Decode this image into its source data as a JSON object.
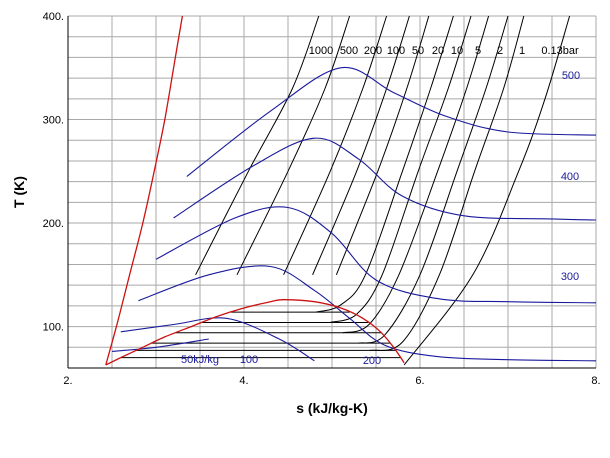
{
  "chart_data": {
    "type": "line",
    "xlabel": "s (kJ/kg-K)",
    "ylabel": "T (K)",
    "xlim": [
      2,
      8
    ],
    "ylim": [
      60,
      400
    ],
    "x_ticks": [
      2,
      4,
      6,
      8
    ],
    "x_tick_labels": [
      "2.",
      "4.",
      "6.",
      "8."
    ],
    "y_ticks": [
      100,
      200,
      300,
      400
    ],
    "y_tick_labels": [
      "100.",
      "200.",
      "300.",
      "400."
    ],
    "grid": true,
    "pressure_label_row": [
      "1000",
      "500",
      "200",
      "100",
      "50",
      "20",
      "10",
      "5",
      "2",
      "1",
      "0.13bar"
    ],
    "enthalpy_labels": [
      "50kJ/kg",
      "100",
      "200",
      "300",
      "400",
      "500"
    ],
    "colors": {
      "isobar": "#000000",
      "isenthalp": "#1a1a9c",
      "saturation": "#cc1111",
      "grid": "#a8a8a8"
    },
    "saturation_dome": {
      "liquid": [
        [
          2.43,
          63
        ],
        [
          2.6,
          70
        ],
        [
          2.85,
          80
        ],
        [
          3.1,
          90
        ],
        [
          3.4,
          100
        ],
        [
          3.7,
          110
        ],
        [
          4.0,
          118
        ],
        [
          4.3,
          124
        ],
        [
          4.45,
          126
        ]
      ],
      "vapor": [
        [
          4.45,
          126
        ],
        [
          4.8,
          124
        ],
        [
          5.1,
          118
        ],
        [
          5.35,
          108
        ],
        [
          5.55,
          95
        ],
        [
          5.7,
          80
        ],
        [
          5.82,
          65
        ]
      ]
    },
    "liquid_line": [
      [
        2.43,
        63
      ],
      [
        2.55,
        100
      ],
      [
        2.7,
        150
      ],
      [
        2.85,
        200
      ],
      [
        2.98,
        250
      ],
      [
        3.1,
        300
      ],
      [
        3.2,
        350
      ],
      [
        3.3,
        400
      ]
    ],
    "isobars": [
      {
        "p": "0.13bar",
        "pts": [
          [
            5.82,
            63
          ],
          [
            6.6,
            150
          ],
          [
            7.12,
            250
          ],
          [
            7.42,
            320
          ],
          [
            7.7,
            400
          ]
        ]
      },
      {
        "p": "1",
        "pts": [
          [
            5.43,
            77
          ],
          [
            5.8,
            85
          ],
          [
            6.22,
            150
          ],
          [
            6.62,
            250
          ],
          [
            6.95,
            330
          ],
          [
            7.18,
            400
          ]
        ]
      },
      {
        "p": "2",
        "pts": [
          [
            5.3,
            84
          ],
          [
            5.6,
            92
          ],
          [
            6.0,
            150
          ],
          [
            6.42,
            250
          ],
          [
            6.75,
            330
          ],
          [
            7.0,
            400
          ]
        ]
      },
      {
        "p": "5",
        "pts": [
          [
            5.12,
            94
          ],
          [
            5.42,
            102
          ],
          [
            5.76,
            150
          ],
          [
            6.2,
            250
          ],
          [
            6.53,
            330
          ],
          [
            6.78,
            400
          ]
        ]
      },
      {
        "p": "10",
        "pts": [
          [
            4.98,
            104
          ],
          [
            5.28,
            112
          ],
          [
            5.57,
            150
          ],
          [
            5.98,
            250
          ],
          [
            6.32,
            330
          ],
          [
            6.58,
            400
          ]
        ]
      },
      {
        "p": "20",
        "pts": [
          [
            4.82,
            114
          ],
          [
            5.1,
            121
          ],
          [
            5.38,
            150
          ],
          [
            5.8,
            250
          ],
          [
            6.12,
            330
          ],
          [
            6.38,
            400
          ]
        ]
      },
      {
        "p": "50",
        "pts": [
          [
            5.05,
            150
          ],
          [
            5.52,
            250
          ],
          [
            5.85,
            330
          ],
          [
            6.1,
            400
          ]
        ]
      },
      {
        "p": "100",
        "pts": [
          [
            4.78,
            150
          ],
          [
            5.28,
            250
          ],
          [
            5.62,
            330
          ],
          [
            5.88,
            400
          ]
        ]
      },
      {
        "p": "200",
        "pts": [
          [
            4.45,
            150
          ],
          [
            4.98,
            250
          ],
          [
            5.35,
            330
          ],
          [
            5.62,
            400
          ]
        ]
      },
      {
        "p": "500",
        "pts": [
          [
            3.92,
            150
          ],
          [
            4.5,
            250
          ],
          [
            4.92,
            330
          ],
          [
            5.2,
            400
          ]
        ]
      },
      {
        "p": "1000",
        "pts": [
          [
            3.45,
            150
          ],
          [
            4.05,
            250
          ],
          [
            4.55,
            330
          ],
          [
            4.85,
            400
          ]
        ]
      }
    ],
    "isenthalps": [
      {
        "h": "50kJ/kg",
        "pts": [
          [
            2.5,
            76
          ],
          [
            3.0,
            80
          ],
          [
            3.6,
            88
          ]
        ]
      },
      {
        "h": "100",
        "pts": [
          [
            2.6,
            95
          ],
          [
            3.2,
            102
          ],
          [
            3.8,
            108
          ],
          [
            4.4,
            88
          ],
          [
            4.8,
            67
          ]
        ]
      },
      {
        "h": "200",
        "pts": [
          [
            2.8,
            125
          ],
          [
            3.6,
            150
          ],
          [
            4.3,
            158
          ],
          [
            4.8,
            135
          ],
          [
            5.2,
            108
          ],
          [
            5.6,
            82
          ],
          [
            6.2,
            71
          ],
          [
            7.0,
            68
          ],
          [
            8.0,
            67
          ]
        ]
      },
      {
        "h": "300",
        "pts": [
          [
            3.0,
            165
          ],
          [
            3.9,
            205
          ],
          [
            4.5,
            215
          ],
          [
            5.0,
            190
          ],
          [
            5.5,
            145
          ],
          [
            6.2,
            127
          ],
          [
            7.0,
            124
          ],
          [
            8.0,
            123
          ]
        ]
      },
      {
        "h": "400",
        "pts": [
          [
            3.2,
            205
          ],
          [
            4.1,
            255
          ],
          [
            4.8,
            282
          ],
          [
            5.3,
            262
          ],
          [
            5.8,
            226
          ],
          [
            6.5,
            207
          ],
          [
            7.5,
            204
          ],
          [
            8.0,
            203
          ]
        ]
      },
      {
        "h": "500",
        "pts": [
          [
            3.35,
            245
          ],
          [
            4.3,
            308
          ],
          [
            5.1,
            350
          ],
          [
            5.7,
            326
          ],
          [
            6.3,
            303
          ],
          [
            7.0,
            288
          ],
          [
            8.0,
            285
          ]
        ]
      }
    ]
  }
}
